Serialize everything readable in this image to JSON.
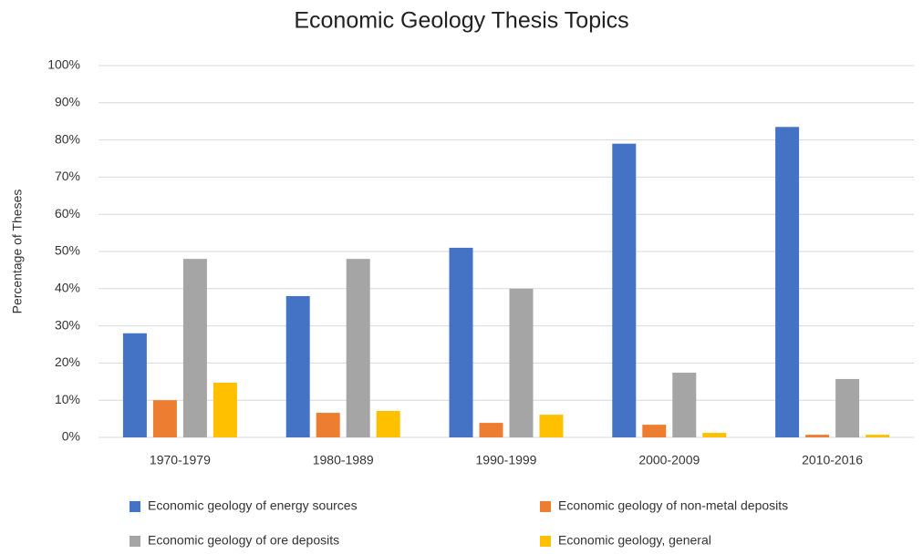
{
  "chart_data": {
    "type": "bar",
    "title": "Economic Geology Thesis Topics",
    "ylabel": "Percentage  of Theses",
    "categories": [
      "1970-1979",
      "1980-1989",
      "1990-1999",
      "2000-2009",
      "2010-2016"
    ],
    "series": [
      {
        "name": "Economic geology of energy sources",
        "color": "#4472c4",
        "values": [
          28,
          38,
          51,
          79,
          83.5
        ]
      },
      {
        "name": "Economic geology of non-metal deposits",
        "color": "#ed7d31",
        "values": [
          10,
          6.6,
          3.9,
          3.4,
          0.7
        ]
      },
      {
        "name": "Economic geology of ore deposits",
        "color": "#a5a5a5",
        "values": [
          48,
          48,
          40,
          17.4,
          15.7
        ]
      },
      {
        "name": "Economic geology, general",
        "color": "#ffc000",
        "values": [
          14.7,
          7.1,
          6.1,
          1.2,
          0.7
        ]
      }
    ],
    "ylim": [
      0,
      100
    ],
    "yticks": [
      {
        "value": 0,
        "label": "0%"
      },
      {
        "value": 10,
        "label": "10%"
      },
      {
        "value": 20,
        "label": "20%"
      },
      {
        "value": 30,
        "label": "30%"
      },
      {
        "value": 40,
        "label": "40%"
      },
      {
        "value": 50,
        "label": "50%"
      },
      {
        "value": 60,
        "label": "60%"
      },
      {
        "value": 70,
        "label": "70%"
      },
      {
        "value": 80,
        "label": "80%"
      },
      {
        "value": 90,
        "label": "90%"
      },
      {
        "value": 100,
        "label": "100%"
      }
    ],
    "grid": true,
    "legend": "bottom"
  }
}
